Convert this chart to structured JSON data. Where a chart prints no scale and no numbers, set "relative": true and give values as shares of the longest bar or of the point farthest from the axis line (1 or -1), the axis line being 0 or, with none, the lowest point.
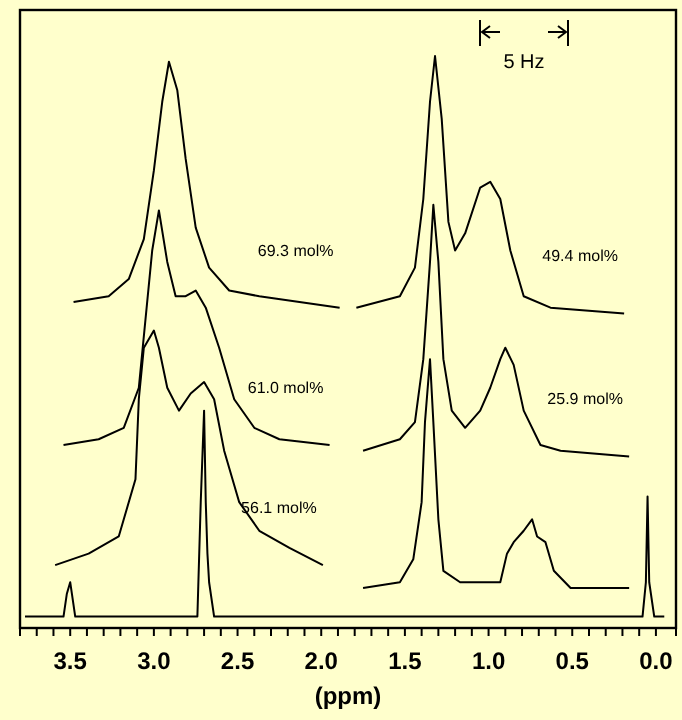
{
  "chart_data": {
    "type": "line",
    "relative": true,
    "xlabel": "(ppm)",
    "tick_labels": "x",
    "annotations": [
      "5 Hz"
    ],
    "xlim": [
      3.8,
      -0.12
    ],
    "xticks": [
      {
        "value": 3.5,
        "label": "3.5"
      },
      {
        "value": 3.0,
        "label": "3.0"
      },
      {
        "value": 2.5,
        "label": "2.5"
      },
      {
        "value": 2.0,
        "label": "2.0"
      },
      {
        "value": 1.5,
        "label": "1.5"
      },
      {
        "value": 1.0,
        "label": "1.0"
      },
      {
        "value": 0.5,
        "label": "0.5"
      },
      {
        "value": 0.0,
        "label": "0.0"
      },
      {
        "value": 3.7,
        "label": null
      },
      {
        "value": 3.6,
        "label": null
      },
      {
        "value": 3.4,
        "label": null
      },
      {
        "value": 3.3,
        "label": null
      },
      {
        "value": 3.2,
        "label": null
      },
      {
        "value": 3.1,
        "label": null
      },
      {
        "value": 2.9,
        "label": null
      },
      {
        "value": 2.8,
        "label": null
      },
      {
        "value": 2.7,
        "label": null
      },
      {
        "value": 2.6,
        "label": null
      },
      {
        "value": 2.4,
        "label": null
      },
      {
        "value": 2.3,
        "label": null
      },
      {
        "value": 2.2,
        "label": null
      },
      {
        "value": 2.1,
        "label": null
      },
      {
        "value": 1.9,
        "label": null
      },
      {
        "value": 1.8,
        "label": null
      },
      {
        "value": 1.7,
        "label": null
      },
      {
        "value": 1.6,
        "label": null
      },
      {
        "value": 1.4,
        "label": null
      },
      {
        "value": 1.3,
        "label": null
      },
      {
        "value": 1.2,
        "label": null
      },
      {
        "value": 1.1,
        "label": null
      },
      {
        "value": 0.9,
        "label": null
      },
      {
        "value": 0.8,
        "label": null
      },
      {
        "value": 0.7,
        "label": null
      },
      {
        "value": 0.6,
        "label": null
      },
      {
        "value": 0.4,
        "label": null
      },
      {
        "value": 0.3,
        "label": null
      },
      {
        "value": 0.2,
        "label": null
      },
      {
        "value": 0.1,
        "label": null
      }
    ],
    "series": [
      {
        "name": "69.3 mol%",
        "color": "#000000",
        "x": [
          3.48,
          3.27,
          3.15,
          3.06,
          3.0,
          2.95,
          2.91,
          2.86,
          2.81,
          2.75,
          2.67,
          2.55,
          2.37,
          2.13,
          1.89
        ],
        "values": [
          0.57,
          0.58,
          0.61,
          0.68,
          0.8,
          0.92,
          0.99,
          0.94,
          0.82,
          0.7,
          0.63,
          0.59,
          0.58,
          0.57,
          0.56
        ]
      },
      {
        "name": "61.0 mol%",
        "color": "#000000",
        "x": [
          3.54,
          3.33,
          3.18,
          3.09,
          3.05,
          3.01,
          2.97,
          2.92,
          2.87,
          2.81,
          2.75,
          2.69,
          2.61,
          2.52,
          2.4,
          2.25,
          1.95
        ],
        "values": [
          0.32,
          0.33,
          0.35,
          0.42,
          0.54,
          0.66,
          0.73,
          0.64,
          0.58,
          0.58,
          0.59,
          0.56,
          0.49,
          0.4,
          0.35,
          0.33,
          0.32
        ]
      },
      {
        "name": "56.1 mol%",
        "color": "#000000",
        "x": [
          3.59,
          3.39,
          3.21,
          3.11,
          3.09,
          3.06,
          3.0,
          2.97,
          2.92,
          2.85,
          2.78,
          2.7,
          2.64,
          2.58,
          2.49,
          2.37,
          2.19,
          1.99
        ],
        "values": [
          0.11,
          0.13,
          0.16,
          0.26,
          0.4,
          0.49,
          0.52,
          0.49,
          0.42,
          0.38,
          0.41,
          0.43,
          0.4,
          0.31,
          0.22,
          0.17,
          0.14,
          0.11
        ]
      },
      {
        "name": "49.4 mol%",
        "color": "#000000",
        "x": [
          1.79,
          1.53,
          1.44,
          1.39,
          1.35,
          1.32,
          1.28,
          1.24,
          1.2,
          1.14,
          1.05,
          0.99,
          0.93,
          0.87,
          0.79,
          0.63,
          0.19
        ],
        "values": [
          0.56,
          0.58,
          0.63,
          0.75,
          0.92,
          1.0,
          0.89,
          0.71,
          0.66,
          0.69,
          0.77,
          0.78,
          0.75,
          0.66,
          0.58,
          0.56,
          0.55
        ]
      },
      {
        "name": "25.9 mol%",
        "color": "#000000",
        "x": [
          1.75,
          1.53,
          1.44,
          1.39,
          1.35,
          1.33,
          1.3,
          1.27,
          1.22,
          1.14,
          1.05,
          0.99,
          0.93,
          0.9,
          0.85,
          0.79,
          0.69,
          0.57,
          0.16
        ],
        "values": [
          0.31,
          0.33,
          0.36,
          0.47,
          0.64,
          0.74,
          0.64,
          0.47,
          0.38,
          0.35,
          0.38,
          0.42,
          0.47,
          0.49,
          0.46,
          0.38,
          0.32,
          0.31,
          0.3
        ]
      },
      {
        "color": "#000000",
        "x": [
          1.75,
          1.53,
          1.45,
          1.4,
          1.38,
          1.35,
          1.33,
          1.3,
          1.27,
          1.17,
          0.93,
          0.89,
          0.85,
          0.79,
          0.74,
          0.71,
          0.66,
          0.61,
          0.51,
          0.16
        ],
        "values": [
          0.07,
          0.08,
          0.12,
          0.22,
          0.36,
          0.47,
          0.36,
          0.19,
          0.1,
          0.08,
          0.08,
          0.13,
          0.15,
          0.17,
          0.19,
          0.16,
          0.15,
          0.1,
          0.07,
          0.07
        ]
      },
      {
        "color": "#000000",
        "x": [
          3.77,
          3.54,
          3.52,
          3.5,
          3.49,
          3.47,
          2.74,
          2.72,
          2.7,
          2.69,
          2.68,
          2.67,
          2.64,
          0.08,
          0.06,
          0.05,
          0.04,
          0.01,
          -0.05
        ],
        "values": [
          0.02,
          0.02,
          0.06,
          0.08,
          0.06,
          0.02,
          0.02,
          0.22,
          0.38,
          0.22,
          0.13,
          0.08,
          0.02,
          0.02,
          0.08,
          0.23,
          0.08,
          0.02,
          0.02
        ]
      }
    ]
  }
}
